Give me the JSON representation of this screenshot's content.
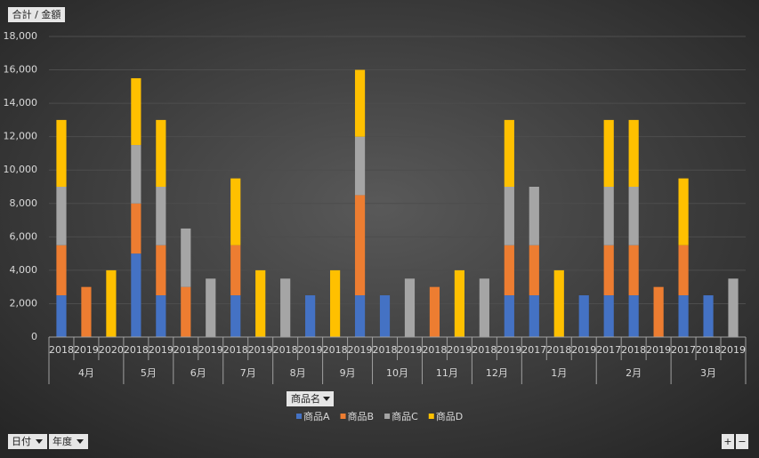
{
  "chart_data": {
    "type": "stacked_bar",
    "groups": [
      {
        "label": "4月",
        "categories": [
          "2018",
          "2019",
          "2020"
        ]
      },
      {
        "label": "5月",
        "categories": [
          "2018",
          "2019"
        ]
      },
      {
        "label": "6月",
        "categories": [
          "2018",
          "2019"
        ]
      },
      {
        "label": "7月",
        "categories": [
          "2018",
          "2019"
        ]
      },
      {
        "label": "8月",
        "categories": [
          "2018",
          "2019"
        ]
      },
      {
        "label": "9月",
        "categories": [
          "2018",
          "2019"
        ]
      },
      {
        "label": "10月",
        "categories": [
          "2018",
          "2019"
        ]
      },
      {
        "label": "11月",
        "categories": [
          "2018",
          "2019"
        ]
      },
      {
        "label": "12月",
        "categories": [
          "2018",
          "2019"
        ]
      },
      {
        "label": "1月",
        "categories": [
          "2017",
          "2018",
          "2019"
        ]
      },
      {
        "label": "2月",
        "categories": [
          "2017",
          "2018",
          "2019"
        ]
      },
      {
        "label": "3月",
        "categories": [
          "2017",
          "2018",
          "2019"
        ]
      }
    ],
    "series": [
      {
        "name": "商品A",
        "color": "#4472c4",
        "values": [
          2500,
          null,
          null,
          5000,
          2500,
          null,
          null,
          2500,
          null,
          null,
          2500,
          null,
          2500,
          2500,
          null,
          null,
          null,
          null,
          2500,
          2500,
          null,
          2500,
          2500,
          2500,
          null,
          2500,
          2500,
          null
        ]
      },
      {
        "name": "商品B",
        "color": "#ed7d31",
        "values": [
          3000,
          3000,
          null,
          3000,
          3000,
          3000,
          null,
          3000,
          null,
          null,
          null,
          null,
          6000,
          null,
          null,
          3000,
          null,
          null,
          3000,
          3000,
          null,
          null,
          3000,
          3000,
          3000,
          3000,
          null,
          null
        ]
      },
      {
        "name": "商品C",
        "color": "#a5a5a5",
        "values": [
          3500,
          null,
          null,
          3500,
          3500,
          3500,
          3500,
          null,
          null,
          3500,
          null,
          null,
          3500,
          null,
          3500,
          null,
          null,
          3500,
          3500,
          3500,
          null,
          null,
          3500,
          3500,
          null,
          null,
          null,
          3500
        ]
      },
      {
        "name": "商品D",
        "color": "#ffc000",
        "values": [
          4000,
          null,
          4000,
          4000,
          4000,
          null,
          null,
          4000,
          4000,
          null,
          null,
          4000,
          4000,
          null,
          null,
          null,
          4000,
          null,
          4000,
          null,
          4000,
          null,
          4000,
          4000,
          null,
          4000,
          null,
          null
        ]
      }
    ],
    "ylim": [
      0,
      18000
    ],
    "yticks": [
      0,
      {
        "value": 2000,
        "label": "2,000"
      },
      {
        "value": 4000,
        "label": "4,000"
      },
      {
        "value": 6000,
        "label": "6,000"
      },
      {
        "value": 8000,
        "label": "8,000"
      },
      {
        "value": 10000,
        "label": "10,000"
      },
      {
        "value": 12000,
        "label": "12,000"
      },
      {
        "value": 14000,
        "label": "14,000"
      },
      {
        "value": 16000,
        "label": "16,000"
      },
      {
        "value": 18000,
        "label": "18,000"
      }
    ],
    "grid": true
  },
  "field_buttons": {
    "value": "合計 / 金額",
    "legend": "商品名",
    "axis": [
      "日付",
      "年度"
    ]
  },
  "zoom": [
    "+",
    "−"
  ]
}
